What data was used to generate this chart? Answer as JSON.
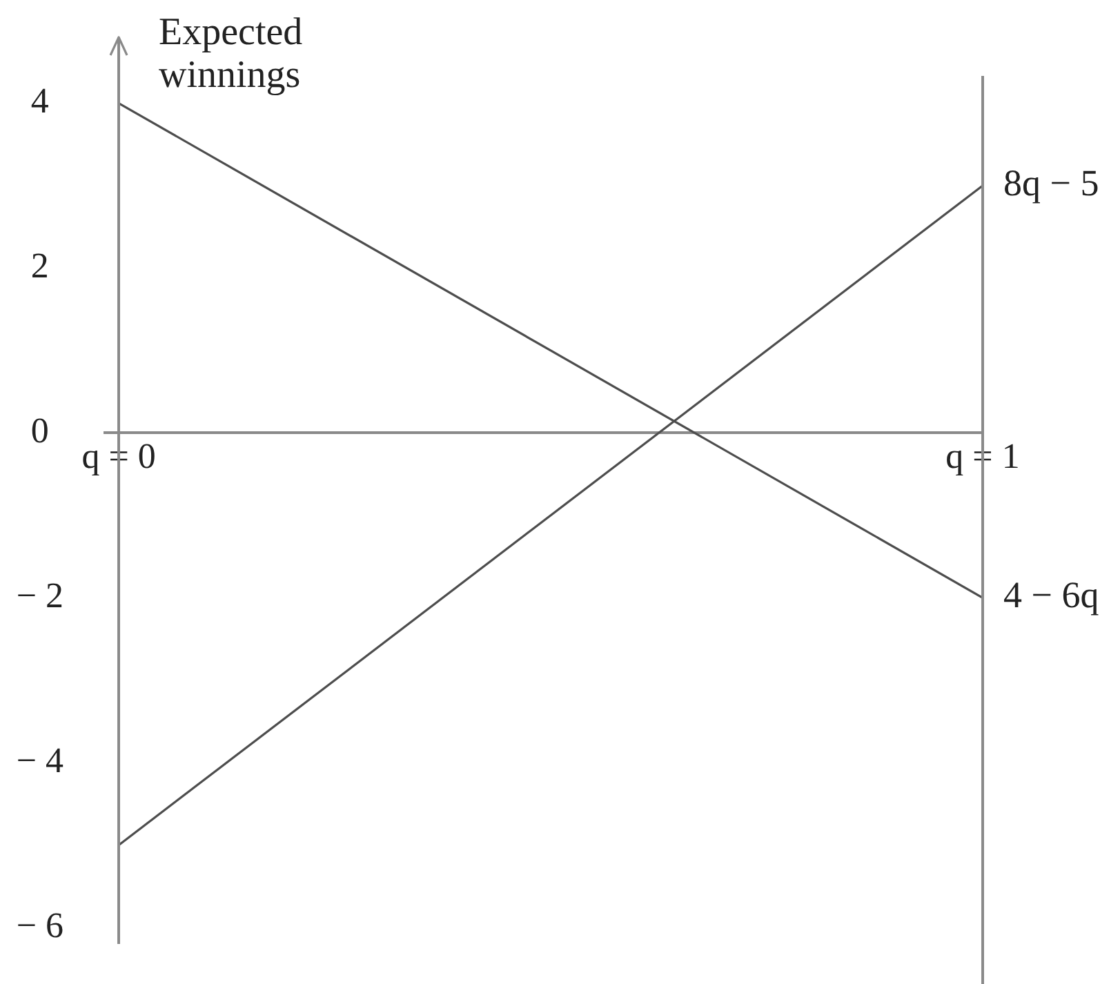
{
  "chart_data": {
    "type": "line",
    "x": [
      0,
      1
    ],
    "ylabel": "Expected winnings",
    "series": [
      {
        "name": "4 − 6q",
        "color": "#4d4d4d",
        "values": [
          4,
          -2
        ]
      },
      {
        "name": "8q − 5",
        "color": "#4d4d4d",
        "values": [
          -5,
          3
        ]
      }
    ],
    "xlim": [
      -0.016,
      1
    ],
    "xticks": [
      {
        "value": 0,
        "label": "q = 0"
      },
      {
        "value": 1,
        "label": "q = 1"
      }
    ],
    "ylim": [
      -6.2,
      4.8
    ],
    "yticks": [
      {
        "value": -6,
        "label": "− 6"
      },
      {
        "value": -4,
        "label": "− 4"
      },
      {
        "value": -2,
        "label": "− 2"
      },
      0,
      2,
      4
    ],
    "ref_lines": [
      {
        "axis": "x",
        "value": 1,
        "color": "#8a8a8a"
      }
    ],
    "grid": false,
    "legend": false,
    "marker": "none",
    "line_style": "solid"
  }
}
